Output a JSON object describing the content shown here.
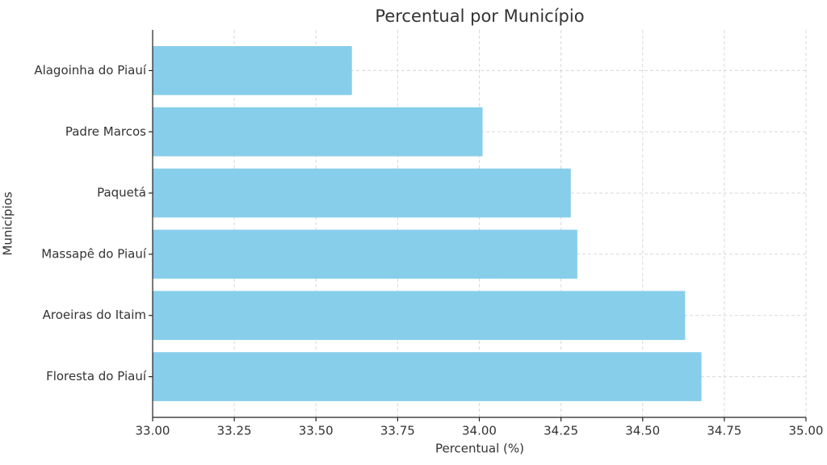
{
  "chart_data": {
    "type": "barh",
    "title": "Percentual por Município",
    "xlabel": "Percentual (%)",
    "ylabel": "Municípios",
    "categories": [
      "Alagoinha do Piauí",
      "Padre Marcos",
      "Paquetá",
      "Massapê do Piauí",
      "Aroeiras do Itaim",
      "Floresta do Piauí"
    ],
    "values": [
      33.61,
      34.01,
      34.28,
      34.3,
      34.63,
      34.68
    ],
    "color": "#87ceeb",
    "xlim": [
      33,
      35
    ],
    "xticks": [
      {
        "value": 33,
        "label": "33.00"
      },
      {
        "value": 33.25,
        "label": "33.25"
      },
      {
        "value": 33.5,
        "label": "33.50"
      },
      {
        "value": 33.75,
        "label": "33.75"
      },
      {
        "value": 34,
        "label": "34.00"
      },
      {
        "value": 34.25,
        "label": "34.25"
      },
      {
        "value": 34.5,
        "label": "34.50"
      },
      {
        "value": 34.75,
        "label": "34.75"
      },
      {
        "value": 35,
        "label": "35.00"
      }
    ],
    "grid": true
  }
}
